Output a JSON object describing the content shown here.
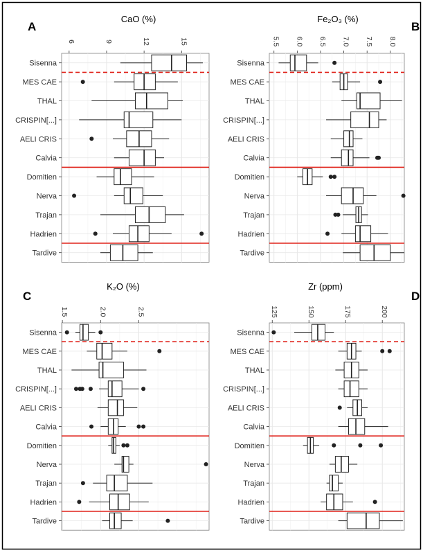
{
  "categories": [
    "Sisenna",
    "MES CAE",
    "THAL",
    "CRISPIN[...]",
    "AELI CRIS",
    "Calvia",
    "Domitien",
    "Nerva",
    "Trajan",
    "Hadrien",
    "Tardive"
  ],
  "colors": {
    "border": "#000000",
    "box_stroke": "#222222",
    "point": "#222222",
    "grid": "#ebebeb",
    "red_line": "#e0221a",
    "text": "#333333"
  },
  "chart_data": [
    {
      "panel": "A",
      "type": "boxplot",
      "title": "CaO (%)",
      "xlim": [
        5.4,
        17.2
      ],
      "ticks": [
        6,
        9,
        12,
        15
      ],
      "tick_labels": [
        "6",
        "9",
        "12",
        "15"
      ],
      "dashed_after": "Sisenna",
      "solid_after": [
        "Calvia",
        "Hadrien"
      ],
      "series": [
        {
          "category": "Sisenna",
          "whisker_low": 10.1,
          "q1": 12.6,
          "median": 14.2,
          "q3": 15.4,
          "whisker_high": 16.7,
          "outliers": []
        },
        {
          "category": "MES CAE",
          "whisker_low": 9.6,
          "q1": 11.2,
          "median": 12.0,
          "q3": 12.9,
          "whisker_high": 14.7,
          "outliers": [
            7.1
          ]
        },
        {
          "category": "THAL",
          "whisker_low": 7.8,
          "q1": 11.3,
          "median": 12.2,
          "q3": 13.9,
          "whisker_high": 15.1,
          "outliers": []
        },
        {
          "category": "CRISPIN[...]",
          "whisker_low": 6.8,
          "q1": 10.4,
          "median": 10.8,
          "q3": 12.7,
          "whisker_high": 15.0,
          "outliers": []
        },
        {
          "category": "AELI CRIS",
          "whisker_low": 9.5,
          "q1": 10.6,
          "median": 11.6,
          "q3": 12.6,
          "whisker_high": 14.0,
          "outliers": [
            7.8
          ]
        },
        {
          "category": "Calvia",
          "whisker_low": 9.6,
          "q1": 10.8,
          "median": 12.0,
          "q3": 12.9,
          "whisker_high": 13.6,
          "outliers": []
        },
        {
          "category": "Domitien",
          "whisker_low": 8.2,
          "q1": 9.6,
          "median": 10.1,
          "q3": 11.0,
          "whisker_high": 12.8,
          "outliers": []
        },
        {
          "category": "Nerva",
          "whisker_low": 9.6,
          "q1": 10.4,
          "median": 10.9,
          "q3": 11.9,
          "whisker_high": 13.5,
          "outliers": [
            6.4
          ]
        },
        {
          "category": "Trajan",
          "whisker_low": 8.5,
          "q1": 11.3,
          "median": 12.4,
          "q3": 13.7,
          "whisker_high": 15.2,
          "outliers": []
        },
        {
          "category": "Hadrien",
          "whisker_low": 9.5,
          "q1": 10.8,
          "median": 11.5,
          "q3": 12.4,
          "whisker_high": 14.2,
          "outliers": [
            8.1,
            16.6
          ]
        },
        {
          "category": "Tardive",
          "whisker_low": 8.5,
          "q1": 9.3,
          "median": 10.3,
          "q3": 11.5,
          "whisker_high": 12.7,
          "outliers": []
        }
      ]
    },
    {
      "panel": "B",
      "type": "boxplot",
      "title": "Fe₂O₃ (%)",
      "xlim": [
        5.4,
        8.3
      ],
      "ticks": [
        5.5,
        6.0,
        6.5,
        7.0,
        7.5,
        8.0
      ],
      "tick_labels": [
        "5.5",
        "6.0",
        "6.5",
        "7.0",
        "7.5",
        "8.0"
      ],
      "dashed_after": "Sisenna",
      "solid_after": [
        "Calvia",
        "Hadrien"
      ],
      "series": [
        {
          "category": "Sisenna",
          "whisker_low": 5.6,
          "q1": 5.85,
          "median": 5.95,
          "q3": 6.2,
          "whisker_high": 6.45,
          "outliers": [
            6.8
          ]
        },
        {
          "category": "MES CAE",
          "whisker_low": 6.75,
          "q1": 6.92,
          "median": 7.0,
          "q3": 7.08,
          "whisker_high": 7.35,
          "outliers": [
            7.78
          ]
        },
        {
          "category": "THAL",
          "whisker_low": 6.95,
          "q1": 7.28,
          "median": 7.35,
          "q3": 7.78,
          "whisker_high": 8.25,
          "outliers": []
        },
        {
          "category": "CRISPIN[...]",
          "whisker_low": 6.62,
          "q1": 7.15,
          "median": 7.55,
          "q3": 7.75,
          "whisker_high": 7.92,
          "outliers": []
        },
        {
          "category": "AELI CRIS",
          "whisker_low": 6.72,
          "q1": 7.0,
          "median": 7.12,
          "q3": 7.2,
          "whisker_high": 7.4,
          "outliers": []
        },
        {
          "category": "Calvia",
          "whisker_low": 6.72,
          "q1": 6.95,
          "median": 7.1,
          "q3": 7.2,
          "whisker_high": 7.55,
          "outliers": [
            7.72,
            7.75
          ]
        },
        {
          "category": "Domitien",
          "whisker_low": 6.0,
          "q1": 6.12,
          "median": 6.22,
          "q3": 6.32,
          "whisker_high": 6.55,
          "outliers": [
            6.72,
            6.8
          ]
        },
        {
          "category": "Nerva",
          "whisker_low": 6.62,
          "q1": 6.95,
          "median": 7.2,
          "q3": 7.42,
          "whisker_high": 7.7,
          "outliers": [
            8.28
          ]
        },
        {
          "category": "Trajan",
          "whisker_low": 6.98,
          "q1": 7.26,
          "median": 7.32,
          "q3": 7.38,
          "whisker_high": 7.52,
          "outliers": [
            6.82,
            6.88
          ]
        },
        {
          "category": "Hadrien",
          "whisker_low": 6.95,
          "q1": 7.25,
          "median": 7.35,
          "q3": 7.58,
          "whisker_high": 7.95,
          "outliers": [
            6.65
          ]
        },
        {
          "category": "Tardive",
          "whisker_low": 6.98,
          "q1": 7.35,
          "median": 7.65,
          "q3": 8.0,
          "whisker_high": 8.3,
          "outliers": []
        }
      ]
    },
    {
      "panel": "C",
      "type": "boxplot",
      "title": "K₂O (%)",
      "xlim": [
        1.49,
        3.42
      ],
      "ticks": [
        1.5,
        2.0,
        2.5
      ],
      "tick_labels": [
        "1.5",
        "2.0",
        "2.5"
      ],
      "dashed_after": "Sisenna",
      "solid_after": [
        "Calvia",
        "Hadrien"
      ],
      "series": [
        {
          "category": "Sisenna",
          "whisker_low": 1.67,
          "q1": 1.73,
          "median": 1.77,
          "q3": 1.84,
          "whisker_high": 1.93,
          "outliers": [
            1.56,
            2.0
          ]
        },
        {
          "category": "MES CAE",
          "whisker_low": 1.82,
          "q1": 1.95,
          "median": 2.02,
          "q3": 2.15,
          "whisker_high": 2.35,
          "outliers": [
            2.77
          ]
        },
        {
          "category": "THAL",
          "whisker_low": 1.62,
          "q1": 1.98,
          "median": 2.03,
          "q3": 2.3,
          "whisker_high": 2.6,
          "outliers": []
        },
        {
          "category": "CRISPIN[...]",
          "whisker_low": 1.98,
          "q1": 2.1,
          "median": 2.15,
          "q3": 2.28,
          "whisker_high": 2.5,
          "outliers": [
            1.68,
            1.73,
            1.76,
            1.87,
            2.56
          ]
        },
        {
          "category": "AELI CRIS",
          "whisker_low": 1.96,
          "q1": 2.1,
          "median": 2.22,
          "q3": 2.3,
          "whisker_high": 2.48,
          "outliers": []
        },
        {
          "category": "Calvia",
          "whisker_low": 2.0,
          "q1": 2.1,
          "median": 2.17,
          "q3": 2.23,
          "whisker_high": 2.33,
          "outliers": [
            1.88,
            2.5,
            2.56
          ]
        },
        {
          "category": "Domitien",
          "whisker_low": 2.1,
          "q1": 2.15,
          "median": 2.17,
          "q3": 2.2,
          "whisker_high": 2.25,
          "outliers": [
            2.3,
            2.35
          ]
        },
        {
          "category": "Nerva",
          "whisker_low": 2.18,
          "q1": 2.28,
          "median": 2.3,
          "q3": 2.37,
          "whisker_high": 2.43,
          "outliers": [
            3.38
          ]
        },
        {
          "category": "Trajan",
          "whisker_low": 1.9,
          "q1": 2.08,
          "median": 2.18,
          "q3": 2.35,
          "whisker_high": 2.68,
          "outliers": [
            1.77
          ]
        },
        {
          "category": "Hadrien",
          "whisker_low": 1.85,
          "q1": 2.12,
          "median": 2.23,
          "q3": 2.38,
          "whisker_high": 2.63,
          "outliers": [
            1.72
          ]
        },
        {
          "category": "Tardive",
          "whisker_low": 2.02,
          "q1": 2.12,
          "median": 2.18,
          "q3": 2.27,
          "whisker_high": 2.42,
          "outliers": [
            2.88
          ]
        }
      ]
    },
    {
      "panel": "D",
      "type": "boxplot",
      "title": "Zr (ppm)",
      "xlim": [
        123,
        215
      ],
      "ticks": [
        125,
        150,
        175,
        200
      ],
      "tick_labels": [
        "125",
        "150",
        "175",
        "200"
      ],
      "dashed_after": "Sisenna",
      "solid_after": [
        "Calvia",
        "Hadrien"
      ],
      "series": [
        {
          "category": "Sisenna",
          "whisker_low": 140,
          "q1": 152,
          "median": 156,
          "q3": 161,
          "whisker_high": 167,
          "outliers": [
            126
          ]
        },
        {
          "category": "MES CAE",
          "whisker_low": 170,
          "q1": 176,
          "median": 179,
          "q3": 182,
          "whisker_high": 186,
          "outliers": [
            200,
            205
          ]
        },
        {
          "category": "THAL",
          "whisker_low": 168,
          "q1": 174,
          "median": 179,
          "q3": 184,
          "whisker_high": 190,
          "outliers": []
        },
        {
          "category": "CRISPIN[...]",
          "whisker_low": 170,
          "q1": 174,
          "median": 178,
          "q3": 184,
          "whisker_high": 190,
          "outliers": []
        },
        {
          "category": "AELI CRIS",
          "whisker_low": 176,
          "q1": 180,
          "median": 183,
          "q3": 186,
          "whisker_high": 190,
          "outliers": [
            171
          ]
        },
        {
          "category": "Calvia",
          "whisker_low": 170,
          "q1": 177,
          "median": 182,
          "q3": 188,
          "whisker_high": 204,
          "outliers": []
        },
        {
          "category": "Domitien",
          "whisker_low": 146,
          "q1": 149,
          "median": 151,
          "q3": 153,
          "whisker_high": 157,
          "outliers": [
            167,
            185,
            199
          ]
        },
        {
          "category": "Nerva",
          "whisker_low": 164,
          "q1": 168,
          "median": 172,
          "q3": 177,
          "whisker_high": 183,
          "outliers": []
        },
        {
          "category": "Trajan",
          "whisker_low": 162,
          "q1": 164,
          "median": 166,
          "q3": 170,
          "whisker_high": 173,
          "outliers": []
        },
        {
          "category": "Hadrien",
          "whisker_low": 158,
          "q1": 162,
          "median": 167,
          "q3": 173,
          "whisker_high": 180,
          "outliers": [
            195
          ]
        },
        {
          "category": "Tardive",
          "whisker_low": 170,
          "q1": 176,
          "median": 189,
          "q3": 198,
          "whisker_high": 214,
          "outliers": []
        }
      ]
    }
  ]
}
